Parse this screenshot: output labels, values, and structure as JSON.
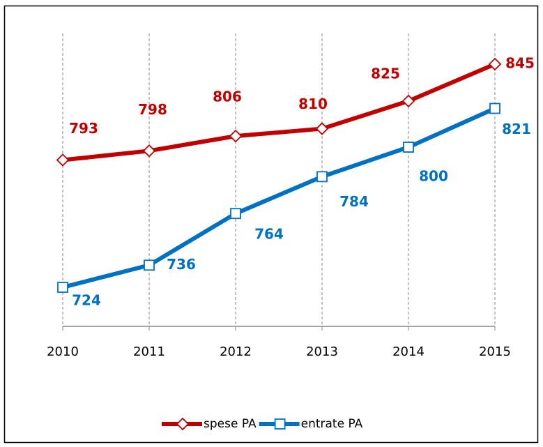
{
  "chart_data": {
    "type": "line",
    "categories": [
      "2010",
      "2011",
      "2012",
      "2013",
      "2014",
      "2015"
    ],
    "series": [
      {
        "name": "spese PA",
        "color": "#c00000",
        "marker": "diamond",
        "values": [
          793,
          798,
          806,
          810,
          825,
          845
        ]
      },
      {
        "name": "entrate PA",
        "color": "#0070c0",
        "marker": "square",
        "values": [
          724,
          736,
          764,
          784,
          800,
          821
        ]
      }
    ],
    "grid": true
  }
}
